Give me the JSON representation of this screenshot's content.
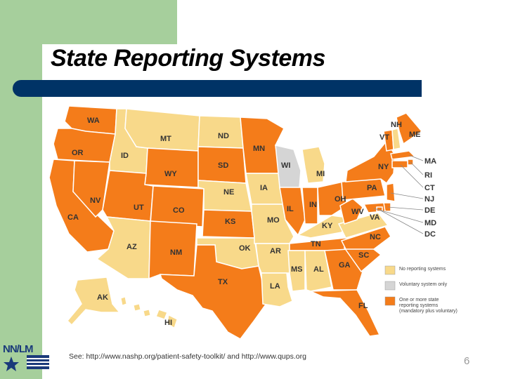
{
  "title": "State Reporting Systems",
  "source_text": "See: http://www.nashp.org/patient-safety-toolkit/ and http://www.qups.org",
  "page_number": "6",
  "logo_text": "NN/LM",
  "colors": {
    "none": "#f8d98a",
    "voluntary": "#d5d5d5",
    "mandatory": "#f47c1a",
    "title_rule": "#003366",
    "sidebar": "#a6cf9c"
  },
  "legend": [
    {
      "category": "none",
      "label": "No reporting systems"
    },
    {
      "category": "voluntary",
      "label": "Voluntary system only"
    },
    {
      "category": "mandatory",
      "label_lines": [
        "One or more state",
        "reporting systems",
        "(mandatory plus voluntary)"
      ]
    }
  ],
  "states": [
    {
      "abbr": "WA",
      "category": "mandatory"
    },
    {
      "abbr": "OR",
      "category": "mandatory"
    },
    {
      "abbr": "CA",
      "category": "mandatory"
    },
    {
      "abbr": "NV",
      "category": "mandatory"
    },
    {
      "abbr": "ID",
      "category": "none"
    },
    {
      "abbr": "MT",
      "category": "none"
    },
    {
      "abbr": "WY",
      "category": "mandatory"
    },
    {
      "abbr": "UT",
      "category": "mandatory"
    },
    {
      "abbr": "CO",
      "category": "mandatory"
    },
    {
      "abbr": "AZ",
      "category": "none"
    },
    {
      "abbr": "NM",
      "category": "mandatory"
    },
    {
      "abbr": "ND",
      "category": "none"
    },
    {
      "abbr": "SD",
      "category": "mandatory"
    },
    {
      "abbr": "NE",
      "category": "none"
    },
    {
      "abbr": "KS",
      "category": "mandatory"
    },
    {
      "abbr": "OK",
      "category": "none"
    },
    {
      "abbr": "TX",
      "category": "mandatory"
    },
    {
      "abbr": "MN",
      "category": "mandatory"
    },
    {
      "abbr": "IA",
      "category": "none"
    },
    {
      "abbr": "MO",
      "category": "none"
    },
    {
      "abbr": "AR",
      "category": "none"
    },
    {
      "abbr": "LA",
      "category": "none"
    },
    {
      "abbr": "WI",
      "category": "voluntary"
    },
    {
      "abbr": "IL",
      "category": "mandatory"
    },
    {
      "abbr": "MI",
      "category": "none"
    },
    {
      "abbr": "IN",
      "category": "mandatory"
    },
    {
      "abbr": "OH",
      "category": "mandatory"
    },
    {
      "abbr": "KY",
      "category": "none"
    },
    {
      "abbr": "TN",
      "category": "mandatory"
    },
    {
      "abbr": "MS",
      "category": "none"
    },
    {
      "abbr": "AL",
      "category": "none"
    },
    {
      "abbr": "GA",
      "category": "mandatory"
    },
    {
      "abbr": "FL",
      "category": "mandatory"
    },
    {
      "abbr": "SC",
      "category": "mandatory"
    },
    {
      "abbr": "NC",
      "category": "mandatory"
    },
    {
      "abbr": "VA",
      "category": "none"
    },
    {
      "abbr": "WV",
      "category": "mandatory"
    },
    {
      "abbr": "PA",
      "category": "mandatory"
    },
    {
      "abbr": "NY",
      "category": "mandatory"
    },
    {
      "abbr": "VT",
      "category": "mandatory"
    },
    {
      "abbr": "NH",
      "category": "none"
    },
    {
      "abbr": "ME",
      "category": "mandatory"
    },
    {
      "abbr": "MA",
      "category": "mandatory"
    },
    {
      "abbr": "RI",
      "category": "mandatory"
    },
    {
      "abbr": "CT",
      "category": "mandatory"
    },
    {
      "abbr": "NJ",
      "category": "mandatory"
    },
    {
      "abbr": "DE",
      "category": "mandatory"
    },
    {
      "abbr": "MD",
      "category": "mandatory"
    },
    {
      "abbr": "DC",
      "category": "mandatory"
    },
    {
      "abbr": "AK",
      "category": "none"
    },
    {
      "abbr": "HI",
      "category": "none"
    }
  ]
}
